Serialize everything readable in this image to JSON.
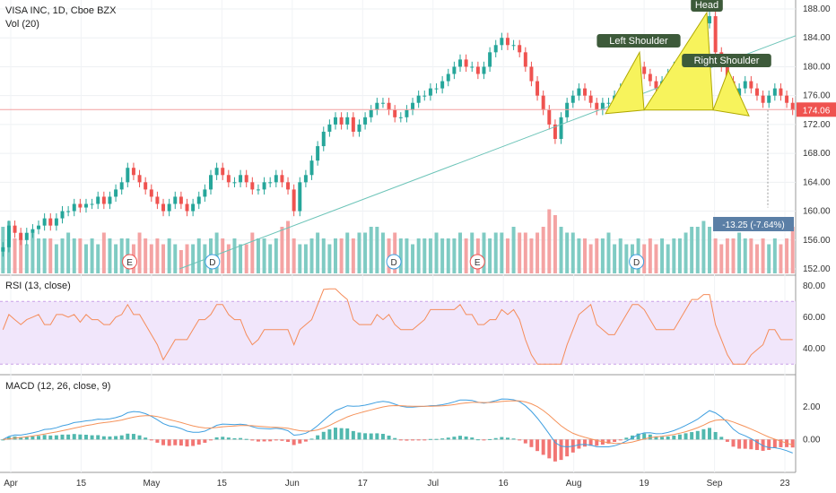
{
  "chart_data": {
    "type": "candlestick",
    "title": "VISA INC, 1D, Cboe BZX",
    "volume_label": "Vol (20)",
    "current_price": "174.06",
    "projection_label": "-13.25 (-7.64%)",
    "colors": {
      "up": "#26a69a",
      "down": "#ef5350",
      "vol_up": "#7fcbc3",
      "vol_down": "#f4a3a3",
      "rsi": "#f58c5a",
      "rsi_band": "#f1e6fb",
      "macd": "#3f9fe0",
      "signal": "#f5925a",
      "pattern": "#f7f35c",
      "trend": "#6cc4b8"
    },
    "price_axis": {
      "ticks": [
        "188.00",
        "184.00",
        "180.00",
        "176.00",
        "172.00",
        "168.00",
        "164.00",
        "160.00",
        "156.00",
        "152.00"
      ],
      "ylim": [
        152,
        188
      ]
    },
    "x_axis": {
      "ticks": [
        "Apr",
        "15",
        "May",
        "15",
        "Jun",
        "17",
        "Jul",
        "16",
        "Aug",
        "19",
        "Sep",
        "23"
      ]
    },
    "closes": [
      155,
      158,
      157,
      156,
      157,
      157.5,
      158,
      159,
      158,
      159,
      160,
      160,
      161,
      160.5,
      161,
      161,
      162,
      161,
      162,
      163,
      164,
      166,
      165,
      164,
      163,
      162,
      161,
      160,
      161,
      162,
      161,
      160,
      161,
      162,
      163,
      165,
      166,
      165,
      164,
      164,
      165,
      164,
      163,
      163,
      164,
      164,
      165,
      164,
      163,
      160,
      164,
      165,
      167,
      169,
      171,
      172,
      173,
      172,
      173,
      171,
      172,
      173,
      174,
      175,
      175,
      174,
      173,
      173,
      174,
      175,
      176,
      176,
      177,
      177,
      178,
      179,
      180,
      181,
      180,
      180,
      179,
      180,
      182,
      183,
      184,
      183,
      183,
      182,
      180,
      178,
      176,
      174,
      172,
      170,
      173,
      175,
      176,
      177,
      176,
      175,
      174,
      175,
      175,
      176,
      177,
      178,
      179,
      180,
      179,
      178,
      177,
      178,
      179,
      180,
      181,
      182,
      183,
      184,
      186,
      187,
      182,
      180,
      178,
      176,
      177,
      178,
      177,
      176,
      175,
      176,
      177,
      176,
      175,
      174
    ],
    "volume": [
      8,
      9,
      6,
      6,
      5,
      7,
      6,
      6,
      6,
      5,
      6,
      7,
      6,
      6,
      5,
      6,
      5,
      7,
      6,
      5,
      6,
      6,
      5,
      7,
      6,
      5,
      6,
      5,
      6,
      5,
      4,
      5,
      5,
      6,
      5,
      6,
      7,
      6,
      5,
      6,
      5,
      5,
      7,
      6,
      6,
      5,
      6,
      8,
      9,
      6,
      5,
      5,
      6,
      7,
      6,
      5,
      6,
      6,
      7,
      6,
      7,
      7,
      8,
      8,
      7,
      6,
      7,
      6,
      6,
      5,
      6,
      6,
      6,
      7,
      6,
      6,
      6,
      7,
      6,
      7,
      6,
      7,
      6,
      7,
      7,
      6,
      8,
      7,
      7,
      6,
      7,
      8,
      11,
      10,
      8,
      7,
      7,
      6,
      6,
      5,
      6,
      6,
      7,
      5,
      6,
      5,
      5,
      6,
      5,
      6,
      5,
      6,
      5,
      6,
      6,
      7,
      8,
      8,
      9,
      8,
      6,
      5,
      6,
      6,
      7,
      6,
      6,
      5,
      6,
      5,
      6,
      5,
      6,
      8
    ],
    "rsi": {
      "label": "RSI (13, close)",
      "ticks": [
        "80.00",
        "60.00",
        "40.00"
      ],
      "ylim": [
        25,
        85
      ],
      "band": [
        30,
        70
      ]
    },
    "macd": {
      "label": "MACD (12, 26, close, 9)",
      "ticks": [
        "2.00",
        "0.00"
      ],
      "ylim": [
        -1.8,
        3.6
      ]
    },
    "pattern_labels": {
      "left_shoulder": "Left Shoulder",
      "head": "Head",
      "right_shoulder": "Right Shoulder"
    },
    "events": [
      {
        "label": "E",
        "x": 0.163
      },
      {
        "label": "D",
        "x": 0.267
      },
      {
        "label": "D",
        "x": 0.495
      },
      {
        "label": "E",
        "x": 0.6
      },
      {
        "label": "D",
        "x": 0.8
      }
    ]
  }
}
